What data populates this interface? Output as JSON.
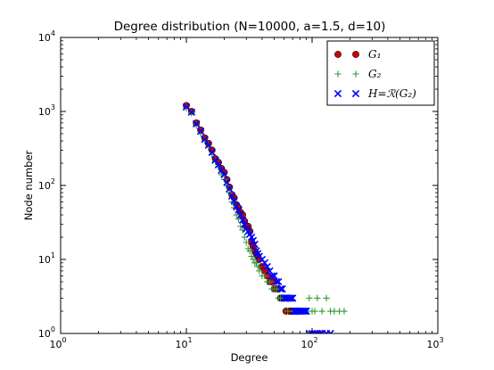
{
  "chart_data": {
    "type": "scatter",
    "title": "Degree distribution (N=10000, a=1.5, d=10)",
    "xlabel": "Degree",
    "ylabel": "Node number",
    "xscale": "log",
    "yscale": "log",
    "xlim": [
      1,
      1000
    ],
    "ylim": [
      1,
      10000
    ],
    "grid": false,
    "legend_position": "top-right",
    "x_ticks": [
      {
        "value": 1,
        "base": "10",
        "exp": "0"
      },
      {
        "value": 10,
        "base": "10",
        "exp": "1"
      },
      {
        "value": 100,
        "base": "10",
        "exp": "2"
      },
      {
        "value": 1000,
        "base": "10",
        "exp": "3"
      }
    ],
    "y_ticks": [
      {
        "value": 1,
        "base": "10",
        "exp": "0"
      },
      {
        "value": 10,
        "base": "10",
        "exp": "1"
      },
      {
        "value": 100,
        "base": "10",
        "exp": "2"
      },
      {
        "value": 1000,
        "base": "10",
        "exp": "3"
      },
      {
        "value": 10000,
        "base": "10",
        "exp": "4"
      }
    ],
    "series": [
      {
        "name": "G₁",
        "marker": "circle",
        "color": "#cc0000",
        "points": [
          [
            10,
            1200
          ],
          [
            11,
            1000
          ],
          [
            12,
            700
          ],
          [
            13,
            560
          ],
          [
            14,
            440
          ],
          [
            15,
            370
          ],
          [
            16,
            300
          ],
          [
            17,
            230
          ],
          [
            18,
            205
          ],
          [
            19,
            170
          ],
          [
            20,
            150
          ],
          [
            21,
            120
          ],
          [
            22,
            95
          ],
          [
            23,
            75
          ],
          [
            24,
            68
          ],
          [
            25,
            55
          ],
          [
            26,
            50
          ],
          [
            27,
            43
          ],
          [
            28,
            40
          ],
          [
            29,
            33
          ],
          [
            30,
            28
          ],
          [
            31,
            28
          ],
          [
            32,
            24
          ],
          [
            33,
            17
          ],
          [
            34,
            15
          ],
          [
            35,
            13
          ],
          [
            36,
            12
          ],
          [
            37,
            11
          ],
          [
            38,
            10
          ],
          [
            40,
            8
          ],
          [
            42,
            7
          ],
          [
            44,
            6
          ],
          [
            46,
            5
          ],
          [
            48,
            5
          ],
          [
            50,
            4
          ],
          [
            52,
            4
          ],
          [
            54,
            4
          ],
          [
            56,
            3
          ],
          [
            58,
            3
          ],
          [
            60,
            3
          ],
          [
            62,
            2
          ],
          [
            64,
            3
          ],
          [
            66,
            2
          ],
          [
            68,
            2
          ],
          [
            70,
            2
          ],
          [
            72,
            2
          ],
          [
            75,
            2
          ],
          [
            78,
            2
          ]
        ]
      },
      {
        "name": "G₂",
        "marker": "plus",
        "color": "#339933",
        "points": [
          [
            10,
            1100
          ],
          [
            11,
            950
          ],
          [
            12,
            650
          ],
          [
            13,
            500
          ],
          [
            14,
            400
          ],
          [
            15,
            330
          ],
          [
            16,
            260
          ],
          [
            17,
            210
          ],
          [
            18,
            180
          ],
          [
            19,
            140
          ],
          [
            20,
            120
          ],
          [
            21,
            100
          ],
          [
            22,
            80
          ],
          [
            23,
            60
          ],
          [
            24,
            50
          ],
          [
            25,
            40
          ],
          [
            26,
            35
          ],
          [
            27,
            28
          ],
          [
            28,
            25
          ],
          [
            29,
            20
          ],
          [
            30,
            17
          ],
          [
            31,
            14
          ],
          [
            32,
            13
          ],
          [
            33,
            11
          ],
          [
            34,
            10
          ],
          [
            35,
            9
          ],
          [
            36,
            9
          ],
          [
            37,
            8
          ],
          [
            38,
            7
          ],
          [
            40,
            6
          ],
          [
            42,
            6
          ],
          [
            44,
            5
          ],
          [
            46,
            5
          ],
          [
            48,
            4
          ],
          [
            50,
            4
          ],
          [
            52,
            4
          ],
          [
            54,
            3
          ],
          [
            56,
            3
          ],
          [
            58,
            3
          ],
          [
            60,
            3
          ],
          [
            62,
            3
          ],
          [
            64,
            2
          ],
          [
            66,
            3
          ],
          [
            70,
            2
          ],
          [
            74,
            2
          ],
          [
            78,
            2
          ],
          [
            82,
            2
          ],
          [
            86,
            2
          ],
          [
            90,
            2
          ],
          [
            95,
            3
          ],
          [
            100,
            2
          ],
          [
            105,
            2
          ],
          [
            110,
            3
          ],
          [
            120,
            2
          ],
          [
            130,
            3
          ],
          [
            140,
            2
          ],
          [
            150,
            2
          ],
          [
            165,
            2
          ],
          [
            180,
            2
          ]
        ]
      },
      {
        "name": "H=ℛ(G₂)",
        "marker": "x",
        "color": "#0000ff",
        "points": [
          [
            10,
            1150
          ],
          [
            11,
            980
          ],
          [
            12,
            680
          ],
          [
            13,
            540
          ],
          [
            14,
            420
          ],
          [
            15,
            350
          ],
          [
            16,
            280
          ],
          [
            17,
            220
          ],
          [
            18,
            190
          ],
          [
            19,
            160
          ],
          [
            20,
            140
          ],
          [
            21,
            110
          ],
          [
            22,
            90
          ],
          [
            23,
            72
          ],
          [
            24,
            62
          ],
          [
            25,
            52
          ],
          [
            26,
            47
          ],
          [
            27,
            40
          ],
          [
            28,
            34
          ],
          [
            29,
            30
          ],
          [
            30,
            26
          ],
          [
            31,
            24
          ],
          [
            32,
            22
          ],
          [
            33,
            20
          ],
          [
            34,
            18
          ],
          [
            35,
            16
          ],
          [
            36,
            13
          ],
          [
            37,
            12
          ],
          [
            38,
            11
          ],
          [
            40,
            10
          ],
          [
            42,
            9
          ],
          [
            44,
            8
          ],
          [
            46,
            7
          ],
          [
            48,
            6
          ],
          [
            50,
            6
          ],
          [
            52,
            5
          ],
          [
            54,
            5
          ],
          [
            56,
            4
          ],
          [
            58,
            4
          ],
          [
            60,
            3
          ],
          [
            62,
            3
          ],
          [
            64,
            3
          ],
          [
            66,
            3
          ],
          [
            68,
            3
          ],
          [
            70,
            3
          ],
          [
            72,
            2
          ],
          [
            74,
            2
          ],
          [
            76,
            2
          ],
          [
            78,
            2
          ],
          [
            80,
            2
          ],
          [
            82,
            2
          ],
          [
            84,
            2
          ],
          [
            86,
            2
          ],
          [
            88,
            2
          ],
          [
            90,
            2
          ],
          [
            95,
            1
          ],
          [
            100,
            1
          ],
          [
            105,
            1
          ],
          [
            110,
            1
          ],
          [
            115,
            1
          ],
          [
            120,
            1
          ],
          [
            130,
            1
          ],
          [
            140,
            1
          ]
        ]
      }
    ]
  }
}
